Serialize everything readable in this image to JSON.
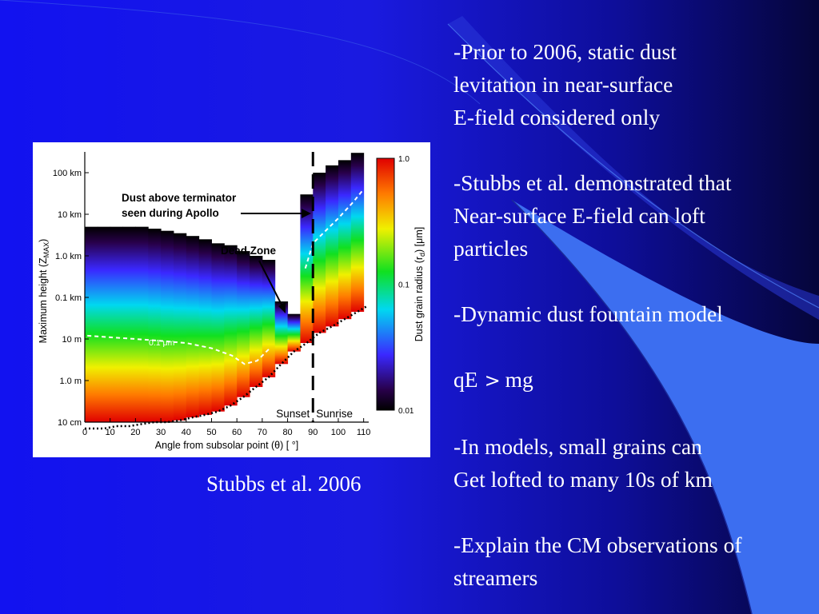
{
  "slide": {
    "bullets": [
      [
        "-Prior to 2006, static dust",
        "levitation in near-surface",
        "E-field considered only"
      ],
      [
        "-Stubbs et al. demonstrated that",
        "Near-surface E-field can loft",
        "particles"
      ],
      [
        "-Dynamic dust fountain model"
      ],
      [
        "-In models, small grains can",
        "Get lofted to many 10s of km"
      ],
      [
        "-Explain the CM observations of",
        "streamers"
      ]
    ],
    "equation": {
      "left": "qE",
      "operator": ">",
      "right": "mg"
    },
    "caption": "Stubbs et al. 2006",
    "colors": {
      "background": "#1414e8",
      "text": "#ffffff",
      "accent_shape": "#3c6ef0"
    }
  },
  "chart_data": {
    "type": "heatmap",
    "xlabel": "Angle from subsolar point (θ) [ °]",
    "ylabel": "Maximum height (Z",
    "ylabel_sub": "MAX",
    "ylabel_close": ")",
    "xlim": [
      0,
      112
    ],
    "x_ticks": [
      "0",
      "10",
      "20",
      "30",
      "40",
      "50",
      "60",
      "70",
      "80",
      "90",
      "100",
      "110"
    ],
    "y_ticks": [
      "10 cm",
      "1.0 m",
      "10 m",
      "0.1 km",
      "1.0 km",
      "10 km",
      "100 km"
    ],
    "colorbar": {
      "label": "Dust grain radius (r",
      "label_sub": "d",
      "label_tail": ") [μm]",
      "ticks": [
        "1.0",
        "0.1",
        "0.01"
      ],
      "range": [
        0.01,
        1.0
      ],
      "scale": "log"
    },
    "annotations": {
      "terminator": "Dust above terminator",
      "terminator2": "seen during Apollo",
      "dead_zone": "Dead Zone",
      "contour": "0.1 μm",
      "sunset": "Sunset",
      "sunrise": "Sunrise"
    },
    "terminator_angle": 90,
    "columns": [
      {
        "theta": 2.5,
        "bottom_m": 0.07,
        "top_m": 5000
      },
      {
        "theta": 7.5,
        "bottom_m": 0.07,
        "top_m": 5000
      },
      {
        "theta": 12.5,
        "bottom_m": 0.08,
        "top_m": 5000
      },
      {
        "theta": 17.5,
        "bottom_m": 0.08,
        "top_m": 5000
      },
      {
        "theta": 22.5,
        "bottom_m": 0.09,
        "top_m": 5000
      },
      {
        "theta": 27.5,
        "bottom_m": 0.1,
        "top_m": 4500
      },
      {
        "theta": 32.5,
        "bottom_m": 0.1,
        "top_m": 4000
      },
      {
        "theta": 37.5,
        "bottom_m": 0.11,
        "top_m": 3500
      },
      {
        "theta": 42.5,
        "bottom_m": 0.13,
        "top_m": 3000
      },
      {
        "theta": 47.5,
        "bottom_m": 0.15,
        "top_m": 2500
      },
      {
        "theta": 52.5,
        "bottom_m": 0.18,
        "top_m": 2000
      },
      {
        "theta": 57.5,
        "bottom_m": 0.25,
        "top_m": 1800
      },
      {
        "theta": 62.5,
        "bottom_m": 0.4,
        "top_m": 1300
      },
      {
        "theta": 67.5,
        "bottom_m": 0.7,
        "top_m": 1000
      },
      {
        "theta": 72.5,
        "bottom_m": 1.2,
        "top_m": 800
      },
      {
        "theta": 77.5,
        "bottom_m": 2.5,
        "top_m": 80
      },
      {
        "theta": 82.5,
        "bottom_m": 5,
        "top_m": 40
      },
      {
        "theta": 87.5,
        "bottom_m": 8,
        "top_m": 30000
      },
      {
        "theta": 92.5,
        "bottom_m": 14,
        "top_m": 100000
      },
      {
        "theta": 97.5,
        "bottom_m": 20,
        "top_m": 150000
      },
      {
        "theta": 102.5,
        "bottom_m": 30,
        "top_m": 200000
      },
      {
        "theta": 107.5,
        "bottom_m": 45,
        "top_m": 300000
      }
    ]
  }
}
